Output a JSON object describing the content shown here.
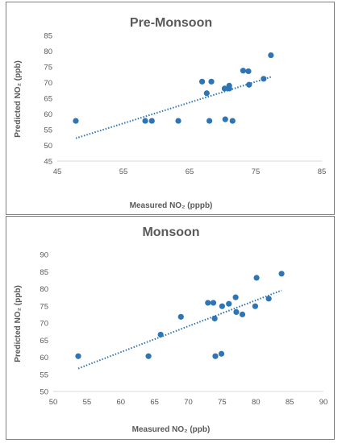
{
  "chart_data": [
    {
      "type": "scatter",
      "title": "Pre-Monsoon",
      "xlabel": "Measured NO₂ (pppb)",
      "ylabel": "Predicted NO₂ (ppb)",
      "xlim": [
        45,
        85
      ],
      "ylim": [
        45,
        85
      ],
      "xticks": [
        "45",
        "55",
        "65",
        "75",
        "85"
      ],
      "yticks": [
        "45",
        "50",
        "55",
        "60",
        "65",
        "70",
        "75",
        "80",
        "85"
      ],
      "grid": false,
      "trendline": "linear",
      "color": "#2e75b6",
      "points": [
        {
          "x": 47.8,
          "y": 57.8
        },
        {
          "x": 58.3,
          "y": 57.8
        },
        {
          "x": 59.3,
          "y": 57.8
        },
        {
          "x": 63.3,
          "y": 57.8
        },
        {
          "x": 66.9,
          "y": 70.3
        },
        {
          "x": 67.6,
          "y": 66.6
        },
        {
          "x": 68.0,
          "y": 57.8
        },
        {
          "x": 68.3,
          "y": 70.3
        },
        {
          "x": 70.3,
          "y": 68.1
        },
        {
          "x": 70.4,
          "y": 58.3
        },
        {
          "x": 71.0,
          "y": 68.1
        },
        {
          "x": 71.0,
          "y": 69.0
        },
        {
          "x": 71.5,
          "y": 57.8
        },
        {
          "x": 73.1,
          "y": 73.8
        },
        {
          "x": 73.9,
          "y": 73.6
        },
        {
          "x": 74.0,
          "y": 69.3
        },
        {
          "x": 76.2,
          "y": 71.2
        },
        {
          "x": 77.3,
          "y": 78.7
        }
      ]
    },
    {
      "type": "scatter",
      "title": "Monsoon",
      "xlabel": "Measured NO₂ (ppb)",
      "ylabel": "Predicted NO₂ (ppb)",
      "xlim": [
        50,
        90
      ],
      "ylim": [
        50,
        90
      ],
      "xticks": [
        "50",
        "55",
        "60",
        "65",
        "70",
        "75",
        "80",
        "85",
        "90"
      ],
      "yticks": [
        "50",
        "55",
        "60",
        "65",
        "70",
        "75",
        "80",
        "85",
        "90"
      ],
      "grid": false,
      "trendline": "linear",
      "color": "#2e75b6",
      "points": [
        {
          "x": 53.7,
          "y": 60.3
        },
        {
          "x": 64.1,
          "y": 60.3
        },
        {
          "x": 65.9,
          "y": 66.6
        },
        {
          "x": 68.9,
          "y": 71.8
        },
        {
          "x": 72.9,
          "y": 75.9
        },
        {
          "x": 73.7,
          "y": 75.9
        },
        {
          "x": 73.9,
          "y": 71.3
        },
        {
          "x": 74.0,
          "y": 60.3
        },
        {
          "x": 74.9,
          "y": 61.0
        },
        {
          "x": 75.0,
          "y": 74.9
        },
        {
          "x": 76.0,
          "y": 75.6
        },
        {
          "x": 77.0,
          "y": 77.5
        },
        {
          "x": 77.1,
          "y": 73.2
        },
        {
          "x": 78.0,
          "y": 72.5
        },
        {
          "x": 79.9,
          "y": 74.9
        },
        {
          "x": 80.1,
          "y": 83.2
        },
        {
          "x": 81.9,
          "y": 77.1
        },
        {
          "x": 83.8,
          "y": 84.4
        }
      ]
    }
  ]
}
